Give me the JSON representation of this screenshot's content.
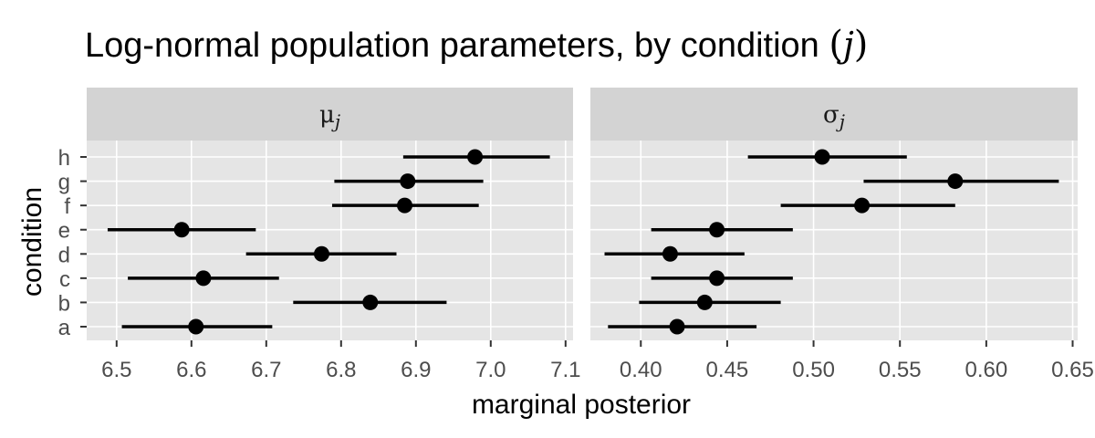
{
  "chart_data": {
    "type": "scatter",
    "title": "Log-normal population parameters, by condition ",
    "title_paren_open": "(",
    "title_italic": "j",
    "title_paren_close": ")",
    "xlabel": "marginal posterior",
    "ylabel": "condition",
    "grid": true,
    "legend": "none",
    "categories": [
      "a",
      "b",
      "c",
      "d",
      "e",
      "f",
      "g",
      "h"
    ],
    "colors": {
      "panel_bg": "#e5e5e5",
      "strip_bg": "#d3d3d3",
      "grid_major": "#ffffff",
      "points": "#000000",
      "tick_text": "#4d4d4d"
    },
    "panels": [
      {
        "strip_symbol": "μ",
        "strip_subscript": "j",
        "xlim": [
          6.46,
          7.11
        ],
        "xticks": [
          6.5,
          6.6,
          6.7,
          6.8,
          6.9,
          7.0,
          7.1
        ],
        "xtick_labels": [
          "6.5",
          "6.6",
          "6.7",
          "6.8",
          "6.9",
          "7.0",
          "7.1"
        ],
        "estimates": [
          {
            "condition": "a",
            "value": 6.606,
            "lower": 6.507,
            "upper": 6.708
          },
          {
            "condition": "b",
            "value": 6.839,
            "lower": 6.736,
            "upper": 6.941
          },
          {
            "condition": "c",
            "value": 6.616,
            "lower": 6.515,
            "upper": 6.717
          },
          {
            "condition": "d",
            "value": 6.774,
            "lower": 6.673,
            "upper": 6.874
          },
          {
            "condition": "e",
            "value": 6.587,
            "lower": 6.488,
            "upper": 6.686
          },
          {
            "condition": "f",
            "value": 6.885,
            "lower": 6.788,
            "upper": 6.984
          },
          {
            "condition": "g",
            "value": 6.889,
            "lower": 6.791,
            "upper": 6.99
          },
          {
            "condition": "h",
            "value": 6.979,
            "lower": 6.883,
            "upper": 7.079
          }
        ]
      },
      {
        "strip_symbol": "σ",
        "strip_subscript": "j",
        "xlim": [
          0.3708,
          0.6529
        ],
        "xticks": [
          0.4,
          0.45,
          0.5,
          0.55,
          0.6,
          0.65
        ],
        "xtick_labels": [
          "0.40",
          "0.45",
          "0.50",
          "0.55",
          "0.60",
          "0.65"
        ],
        "estimates": [
          {
            "condition": "a",
            "value": 0.421,
            "lower": 0.381,
            "upper": 0.467
          },
          {
            "condition": "b",
            "value": 0.437,
            "lower": 0.399,
            "upper": 0.481
          },
          {
            "condition": "c",
            "value": 0.444,
            "lower": 0.406,
            "upper": 0.488
          },
          {
            "condition": "d",
            "value": 0.417,
            "lower": 0.379,
            "upper": 0.46
          },
          {
            "condition": "e",
            "value": 0.444,
            "lower": 0.406,
            "upper": 0.488
          },
          {
            "condition": "f",
            "value": 0.528,
            "lower": 0.481,
            "upper": 0.582
          },
          {
            "condition": "g",
            "value": 0.582,
            "lower": 0.529,
            "upper": 0.642
          },
          {
            "condition": "h",
            "value": 0.505,
            "lower": 0.462,
            "upper": 0.554
          }
        ]
      }
    ]
  }
}
